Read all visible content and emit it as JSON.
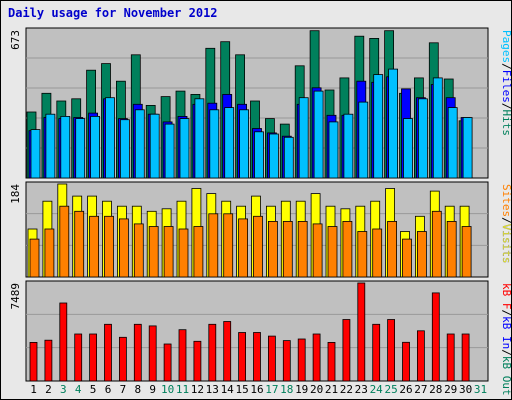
{
  "title": "Daily usage for November 2012",
  "colors": {
    "hits": "#00805c",
    "files": "#0000ff",
    "pages": "#00c0ff",
    "visits": "#ffff00",
    "sites": "#ff8000",
    "kbytes": "#ff0000",
    "weekend_tick": "#00805c",
    "weekday_tick": "#000000",
    "panel_bg": "#c0c0c0",
    "page_bg": "#e8e8e8"
  },
  "chart_data": [
    {
      "type": "bar",
      "title": "Daily usage for November 2012",
      "categories": [
        "1",
        "2",
        "3",
        "4",
        "5",
        "6",
        "7",
        "8",
        "9",
        "10",
        "11",
        "12",
        "13",
        "14",
        "15",
        "16",
        "17",
        "18",
        "19",
        "20",
        "21",
        "22",
        "23",
        "24",
        "25",
        "26",
        "27",
        "28",
        "29",
        "30",
        "31"
      ],
      "weekend_days": [
        "3",
        "4",
        "10",
        "11",
        "17",
        "18",
        "24",
        "25",
        "31"
      ],
      "ylim": [
        0,
        673
      ],
      "max_label": "673",
      "right_label_parts": [
        {
          "text": "Pages",
          "color": "#00c0ff"
        },
        {
          "text": "/",
          "color": "#000000"
        },
        {
          "text": "Files",
          "color": "#0000ff"
        },
        {
          "text": "/",
          "color": "#000000"
        },
        {
          "text": "Hits",
          "color": "#00805c"
        }
      ],
      "series": [
        {
          "name": "Hits",
          "color": "#00805c",
          "values": [
            300,
            385,
            350,
            360,
            490,
            520,
            440,
            560,
            330,
            370,
            395,
            380,
            590,
            620,
            560,
            350,
            270,
            245,
            510,
            670,
            400,
            455,
            645,
            635,
            670,
            385,
            455,
            615,
            450,
            260,
            null
          ]
        },
        {
          "name": "Files",
          "color": "#0000ff",
          "values": [
            215,
            275,
            270,
            275,
            295,
            360,
            270,
            335,
            290,
            255,
            280,
            335,
            340,
            380,
            335,
            225,
            205,
            190,
            335,
            410,
            285,
            285,
            440,
            435,
            460,
            405,
            365,
            425,
            365,
            275,
            null
          ]
        },
        {
          "name": "Pages",
          "color": "#00c0ff",
          "values": [
            220,
            290,
            280,
            270,
            280,
            365,
            265,
            310,
            290,
            245,
            270,
            360,
            310,
            320,
            310,
            210,
            200,
            185,
            365,
            395,
            255,
            290,
            345,
            470,
            495,
            270,
            360,
            455,
            320,
            275,
            null
          ]
        }
      ]
    },
    {
      "type": "bar",
      "ylim": [
        0,
        184
      ],
      "max_label": "184",
      "right_label_parts": [
        {
          "text": "Sites",
          "color": "#ff8000"
        },
        {
          "text": "/",
          "color": "#000000"
        },
        {
          "text": "Visits",
          "color": "#ffff00"
        }
      ],
      "series": [
        {
          "name": "Visits",
          "color": "#ffff00",
          "values": [
            95,
            150,
            184,
            160,
            160,
            150,
            140,
            140,
            130,
            135,
            150,
            175,
            165,
            150,
            140,
            160,
            140,
            150,
            150,
            165,
            140,
            135,
            140,
            150,
            175,
            90,
            120,
            170,
            140,
            140,
            null
          ]
        },
        {
          "name": "Sites",
          "color": "#ff8000",
          "values": [
            75,
            95,
            140,
            130,
            120,
            120,
            115,
            105,
            100,
            100,
            95,
            100,
            125,
            125,
            115,
            120,
            110,
            110,
            110,
            105,
            100,
            110,
            90,
            95,
            110,
            75,
            90,
            130,
            110,
            100,
            null
          ]
        }
      ]
    },
    {
      "type": "bar",
      "ylim": [
        0,
        7489
      ],
      "max_label": "7489",
      "right_label_parts": [
        {
          "text": "kB F",
          "color": "#ff0000"
        },
        {
          "text": "/",
          "color": "#000000"
        },
        {
          "text": "kB In",
          "color": "#0000ff"
        },
        {
          "text": "/",
          "color": "#000000"
        },
        {
          "text": "kB Out",
          "color": "#00805c"
        }
      ],
      "series": [
        {
          "name": "kB F",
          "color": "#ff0000",
          "values": [
            2950,
            3120,
            5960,
            3590,
            3590,
            4330,
            3340,
            4330,
            4210,
            2830,
            3920,
            3030,
            4330,
            4550,
            3710,
            3710,
            3430,
            3090,
            3210,
            3590,
            2950,
            4700,
            7489,
            4330,
            4700,
            2960,
            3840,
            6730,
            3590,
            3590,
            null
          ]
        }
      ]
    }
  ]
}
